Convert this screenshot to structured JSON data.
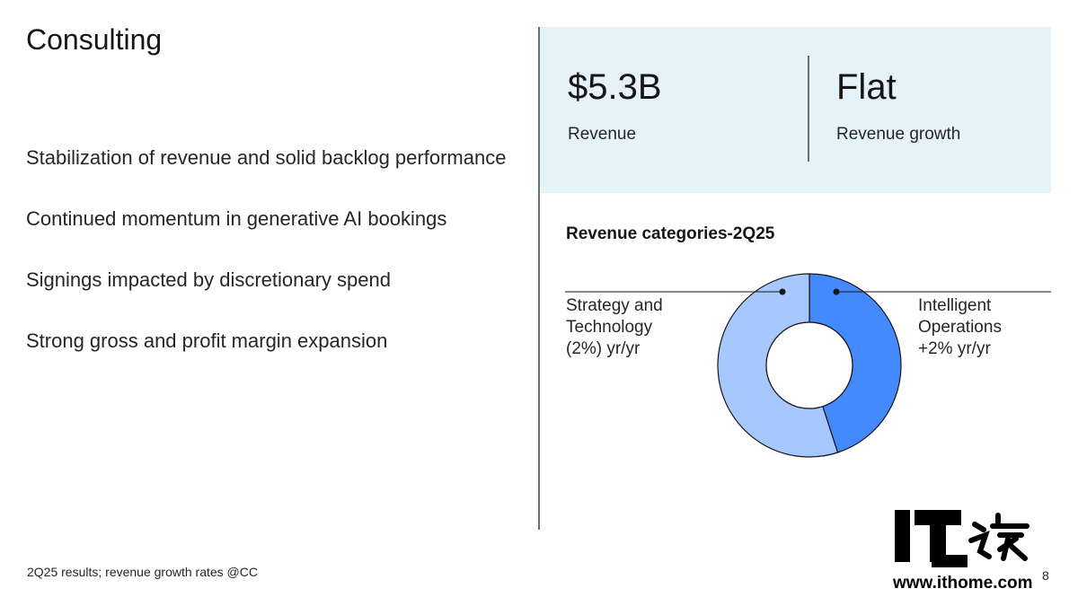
{
  "slide": {
    "title": "Consulting",
    "bullets": [
      "Stabilization of revenue and solid backlog performance",
      "Continued momentum in generative AI bookings",
      "Signings impacted by discretionary spend",
      "Strong gross and profit margin expansion"
    ],
    "footnote": "2Q25 results; revenue growth rates @CC",
    "page_number": "8"
  },
  "kpis": [
    {
      "value": "$5.3B",
      "label": "Revenue"
    },
    {
      "value": "Flat",
      "label": "Revenue growth"
    }
  ],
  "chart_data": {
    "type": "pie",
    "title": "Revenue categories-2Q25",
    "series": [
      {
        "name": "Intelligent Operations",
        "share": 0.45,
        "growth_label": "+2% yr/yr",
        "color": "#4589ff"
      },
      {
        "name": "Strategy and Technology",
        "share": 0.55,
        "growth_label": "(2%) yr/yr",
        "color": "#a6c8ff"
      }
    ],
    "labels": {
      "left": [
        "Strategy and",
        "Technology",
        "(2%) yr/yr"
      ],
      "right": [
        "Intelligent",
        "Operations",
        "+2% yr/yr"
      ]
    }
  },
  "watermark": {
    "text": "IT之家",
    "url": "www.ithome.com"
  },
  "colors": {
    "kpi_background": "#e5f2fa",
    "accent_dark": "#4589ff",
    "accent_light": "#a6c8ff"
  }
}
